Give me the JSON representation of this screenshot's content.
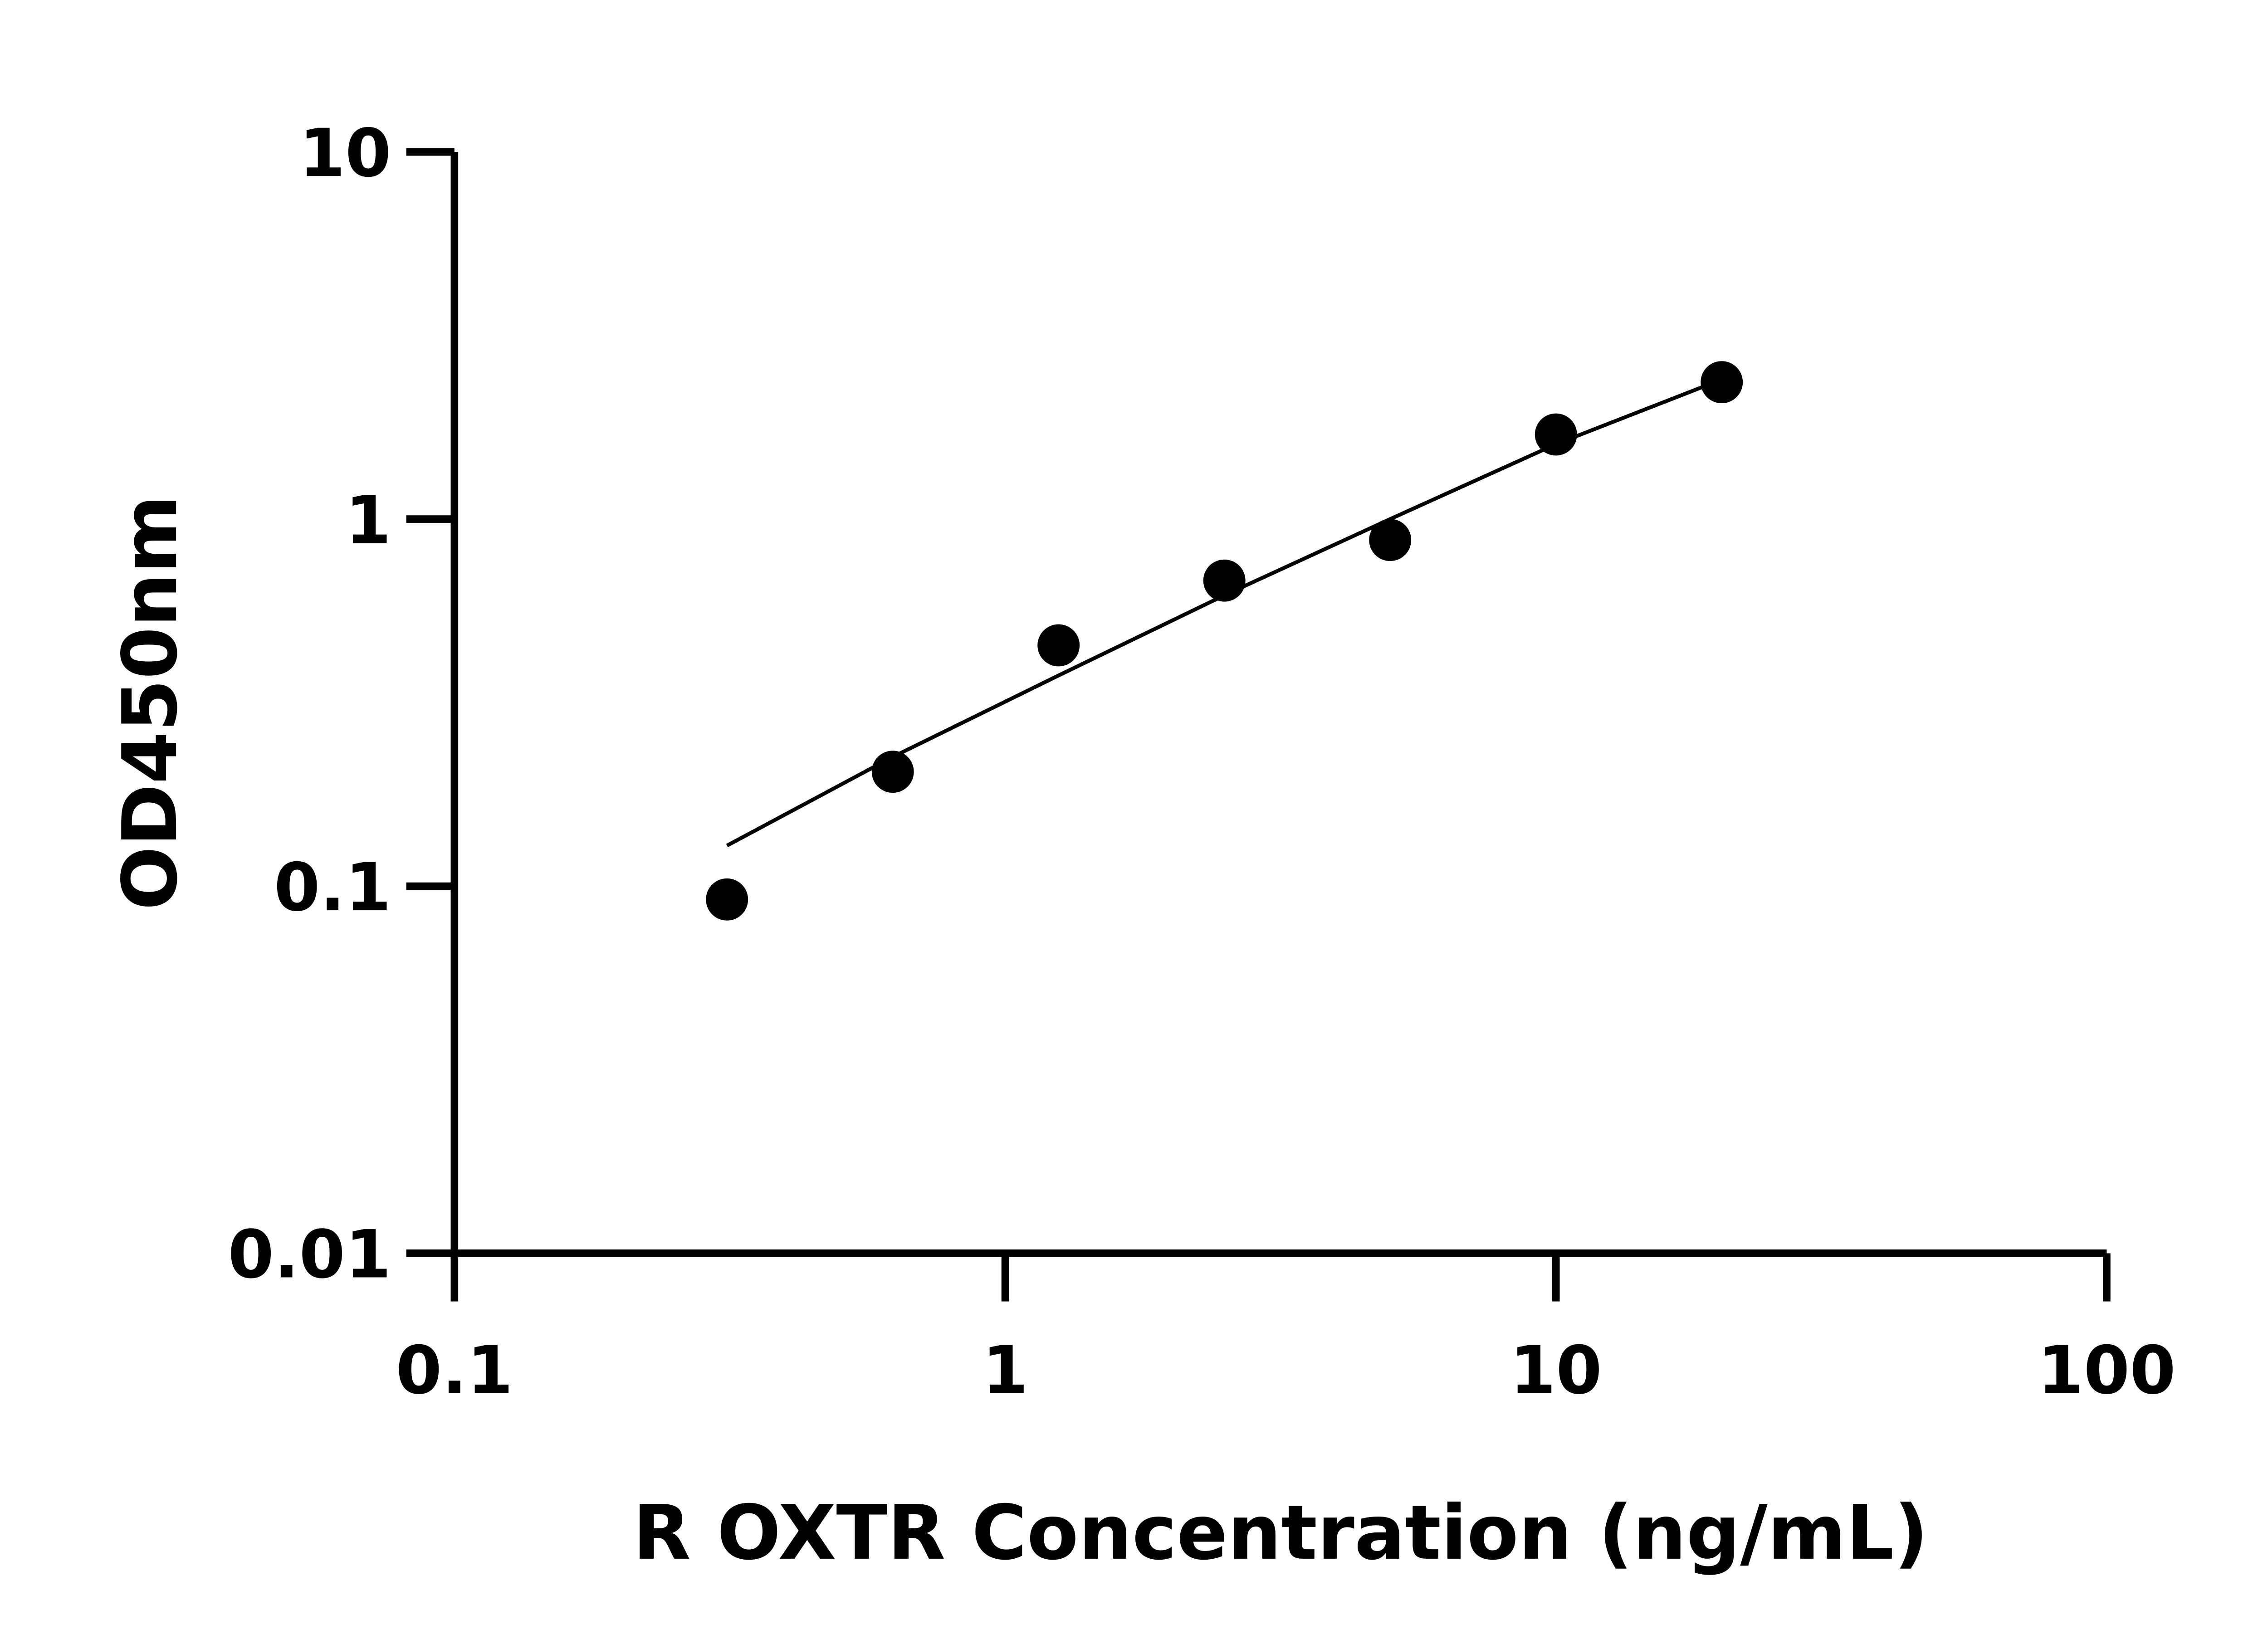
{
  "chart_data": {
    "type": "scatter",
    "title": "",
    "xlabel": "R OXTR Concentration (ng/mL)",
    "ylabel": "OD450nm",
    "x_scale": "log",
    "y_scale": "log",
    "xlim": [
      0.1,
      100
    ],
    "ylim": [
      0.01,
      10
    ],
    "x_ticks": [
      "0.1",
      "1",
      "10",
      "100"
    ],
    "y_ticks": [
      "0.01",
      "0.1",
      "1",
      "10"
    ],
    "x_tick_values": [
      0.1,
      1,
      10,
      100
    ],
    "y_tick_values": [
      0.01,
      0.1,
      1,
      10
    ],
    "grid": false,
    "color": "#000000",
    "series": [
      {
        "x": [
          0.3125,
          0.625,
          1.25,
          2.5,
          5,
          10,
          20
        ],
        "y": [
          0.092,
          0.205,
          0.453,
          0.68,
          0.877,
          1.7,
          2.36
        ]
      }
    ],
    "fit_curve": {
      "x": [
        0.3125,
        0.625,
        1.25,
        2.5,
        5,
        10,
        20
      ],
      "y": [
        0.129,
        0.225,
        0.375,
        0.62,
        1.0,
        1.6,
        2.4
      ]
    }
  }
}
